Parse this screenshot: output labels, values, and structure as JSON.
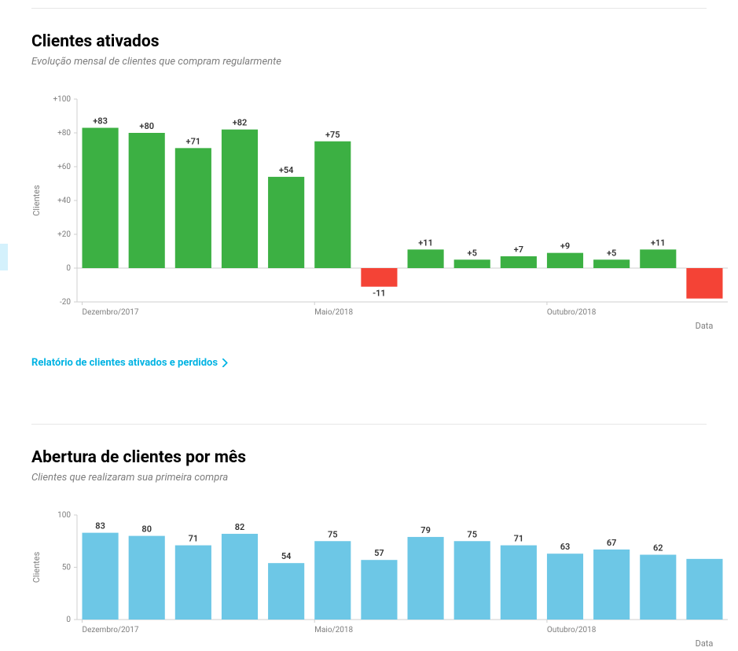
{
  "accent_color": "#d4f1fc",
  "divider_color": "#e6e6e6",
  "chart1": {
    "type": "bar",
    "title": "Clientes ativados",
    "subtitle": "Evolução mensal de clientes que compram regularmente",
    "y_label": "Clientes",
    "x_label": "Data",
    "link_text": "Relatório de clientes ativados e perdidos",
    "link_color": "#00b3e3",
    "y_min": -20,
    "y_max": 100,
    "y_tick_step": 20,
    "y_tick_labels": [
      "-20",
      "0",
      "+20",
      "+40",
      "+60",
      "+80",
      "+100"
    ],
    "x_tick_labels": [
      {
        "index": 0,
        "label": "Dezembro/2017"
      },
      {
        "index": 5,
        "label": "Maio/2018"
      },
      {
        "index": 10,
        "label": "Outubro/2018"
      }
    ],
    "axis_color": "#cfcfcf",
    "text_color": "#7d7d7d",
    "label_fontsize": 11,
    "tick_fontsize": 10,
    "value_fontsize": 11,
    "positive_color": "#3cb043",
    "negative_color": "#f44336",
    "bar_width_ratio": 0.78,
    "background_color": "#ffffff",
    "bars": [
      {
        "value": 83,
        "label": "+83"
      },
      {
        "value": 80,
        "label": "+80"
      },
      {
        "value": 71,
        "label": "+71"
      },
      {
        "value": 82,
        "label": "+82"
      },
      {
        "value": 54,
        "label": "+54"
      },
      {
        "value": 75,
        "label": "+75"
      },
      {
        "value": -11,
        "label": "-11"
      },
      {
        "value": 11,
        "label": "+11"
      },
      {
        "value": 5,
        "label": "+5"
      },
      {
        "value": 7,
        "label": "+7"
      },
      {
        "value": 9,
        "label": "+9"
      },
      {
        "value": 5,
        "label": "+5"
      },
      {
        "value": 11,
        "label": "+11"
      },
      {
        "value": -18,
        "label": ""
      }
    ]
  },
  "chart2": {
    "type": "bar",
    "title": "Abertura de clientes por mês",
    "subtitle": "Clientes que realizaram sua primeira compra",
    "y_label": "Clientes",
    "x_label": "Data",
    "y_min": 0,
    "y_max": 100,
    "y_tick_step": 50,
    "y_tick_labels": [
      "0",
      "50",
      "100"
    ],
    "x_tick_labels": [
      {
        "index": 0,
        "label": "Dezembro/2017"
      },
      {
        "index": 5,
        "label": "Maio/2018"
      },
      {
        "index": 10,
        "label": "Outubro/2018"
      }
    ],
    "axis_color": "#cfcfcf",
    "text_color": "#7d7d7d",
    "label_fontsize": 11,
    "tick_fontsize": 10,
    "value_fontsize": 11,
    "bar_color": "#6dc7e6",
    "bar_width_ratio": 0.78,
    "background_color": "#ffffff",
    "bars": [
      {
        "value": 83,
        "label": "83"
      },
      {
        "value": 80,
        "label": "80"
      },
      {
        "value": 71,
        "label": "71"
      },
      {
        "value": 82,
        "label": "82"
      },
      {
        "value": 54,
        "label": "54"
      },
      {
        "value": 75,
        "label": "75"
      },
      {
        "value": 57,
        "label": "57"
      },
      {
        "value": 79,
        "label": "79"
      },
      {
        "value": 75,
        "label": "75"
      },
      {
        "value": 71,
        "label": "71"
      },
      {
        "value": 63,
        "label": "63"
      },
      {
        "value": 67,
        "label": "67"
      },
      {
        "value": 62,
        "label": "62"
      },
      {
        "value": 58,
        "label": ""
      }
    ]
  }
}
